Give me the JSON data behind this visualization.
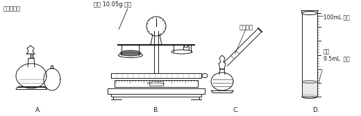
{
  "bg_color": "#ffffff",
  "line_color": "#1a1a1a",
  "label_A_top": "点燃酒精灯",
  "label_B_top": "称量 10.05g 固体",
  "label_C_mid": "液体加热",
  "label_D_top": "100mL 量筒",
  "label_D_mid": "量取\n9.5mL  液体",
  "label_A": "A.",
  "label_B": "B.",
  "label_C": "C.",
  "label_D": "D.",
  "figsize": [
    5.2,
    1.68
  ],
  "dpi": 100
}
